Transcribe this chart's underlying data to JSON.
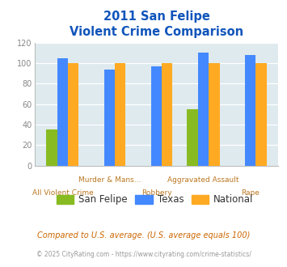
{
  "title_line1": "2011 San Felipe",
  "title_line2": "Violent Crime Comparison",
  "categories": [
    "All Violent Crime",
    "Murder & Mans...",
    "Robbery",
    "Aggravated Assault",
    "Rape"
  ],
  "san_felipe": [
    35,
    0,
    0,
    55,
    0
  ],
  "texas": [
    105,
    94,
    97,
    110,
    108
  ],
  "national": [
    100,
    100,
    100,
    100,
    100
  ],
  "color_san_felipe": "#88bb22",
  "color_texas": "#4488ff",
  "color_national": "#ffaa22",
  "ylim": [
    0,
    120
  ],
  "yticks": [
    0,
    20,
    40,
    60,
    80,
    100,
    120
  ],
  "plot_bg": "#deeaee",
  "title_color": "#1155bb",
  "axis_label_color": "#bb7722",
  "top_labels": [
    "",
    "Murder & Mans...",
    "",
    "Aggravated Assault",
    ""
  ],
  "bottom_labels": [
    "All Violent Crime",
    "",
    "Robbery",
    "",
    "Rape"
  ],
  "legend_labels": [
    "San Felipe",
    "Texas",
    "National"
  ],
  "footnote1": "Compared to U.S. average. (U.S. average equals 100)",
  "footnote2": "© 2025 CityRating.com - https://www.cityrating.com/crime-statistics/",
  "footnote1_color": "#cc6600",
  "footnote2_color": "#999999",
  "footnote2_link_color": "#4488bb"
}
